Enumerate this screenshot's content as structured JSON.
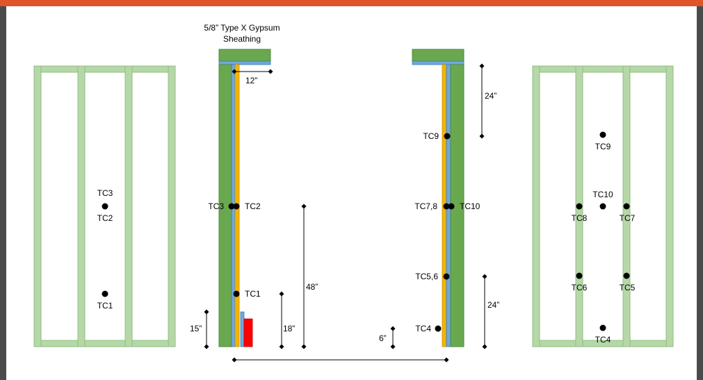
{
  "sheathing_label": {
    "line1": "5/8” Type X Gypsum",
    "line2": "Sheathing"
  },
  "dimensions": {
    "d12": "12”",
    "d24_top": "24”",
    "d48": "48”",
    "d18": "18”",
    "d15": "15”",
    "d6": "6”",
    "d24_bottom": "24”"
  },
  "left_wall_labels": {
    "tc3": "TC3",
    "tc2": "TC2",
    "tc1": "TC1"
  },
  "left_section_labels": {
    "tc3": "TC3",
    "tc2": "TC2",
    "tc1": "TC1"
  },
  "right_section_labels": {
    "tc9": "TC9",
    "tc78": "TC7,8",
    "tc10": "TC10",
    "tc56": "TC5,6",
    "tc4": "TC4"
  },
  "right_wall_labels": {
    "tc9": "TC9",
    "tc10": "TC10",
    "tc8": "TC8",
    "tc7": "TC7",
    "tc6": "TC6",
    "tc5": "TC5",
    "tc4": "TC4"
  },
  "colors": {
    "frame_orange": "#e0552b",
    "stud_green": "#b6d7a8",
    "stud_edge": "#8fbf7f",
    "gypsum_green": "#6aa84f",
    "blue_layer": "#6fa8dc",
    "yellow_layer": "#f4b400",
    "red_block": "#ff0000"
  }
}
